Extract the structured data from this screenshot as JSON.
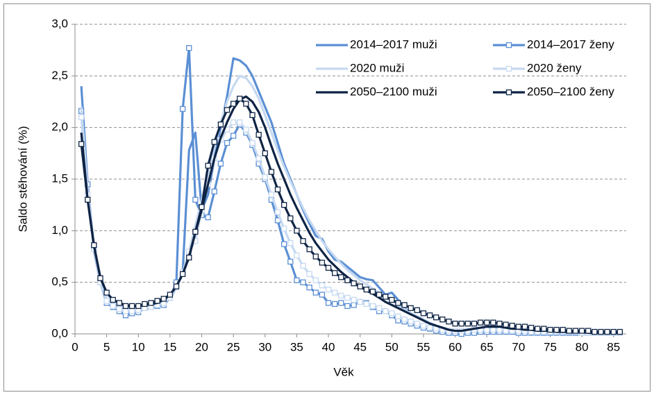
{
  "chart_data": {
    "type": "line",
    "x_label": "Věk",
    "y_label": "Saldo stěhování (%)",
    "x": [
      1,
      2,
      3,
      4,
      5,
      6,
      7,
      8,
      9,
      10,
      11,
      12,
      13,
      14,
      15,
      16,
      17,
      18,
      19,
      20,
      21,
      22,
      23,
      24,
      25,
      26,
      27,
      28,
      29,
      30,
      31,
      32,
      33,
      34,
      35,
      36,
      37,
      38,
      39,
      40,
      41,
      42,
      43,
      44,
      45,
      46,
      47,
      48,
      49,
      50,
      51,
      52,
      53,
      54,
      55,
      56,
      57,
      58,
      59,
      60,
      61,
      62,
      63,
      64,
      65,
      66,
      67,
      68,
      69,
      70,
      71,
      72,
      73,
      74,
      75,
      76,
      77,
      78,
      79,
      80,
      81,
      82,
      83,
      84,
      85,
      86
    ],
    "xlim": [
      0,
      87
    ],
    "xticks": [
      0,
      5,
      10,
      15,
      20,
      25,
      30,
      35,
      40,
      45,
      50,
      55,
      60,
      65,
      70,
      75,
      80,
      85
    ],
    "ylim": [
      0,
      3
    ],
    "yticks": [
      {
        "value": 0,
        "label": "0,0"
      },
      {
        "value": 0.5,
        "label": "0,5"
      },
      {
        "value": 1,
        "label": "1,0"
      },
      {
        "value": 1.5,
        "label": "1,5"
      },
      {
        "value": 2,
        "label": "2,0"
      },
      {
        "value": 2.5,
        "label": "2,5"
      },
      {
        "value": 3,
        "label": "3,0"
      }
    ],
    "grid": true,
    "legend": "upper right",
    "series": [
      {
        "name": "2014–2017 muži",
        "color": "#5b8fd4",
        "marker": "none",
        "values": [
          2.4,
          1.45,
          0.8,
          0.5,
          0.33,
          0.28,
          0.25,
          0.22,
          0.2,
          0.22,
          0.24,
          0.25,
          0.27,
          0.3,
          0.34,
          0.45,
          0.6,
          1.78,
          1.95,
          1.2,
          1.35,
          1.7,
          2.0,
          2.3,
          2.67,
          2.65,
          2.6,
          2.5,
          2.35,
          2.2,
          2.05,
          1.85,
          1.65,
          1.5,
          1.35,
          1.2,
          1.07,
          0.95,
          0.92,
          0.8,
          0.72,
          0.7,
          0.65,
          0.6,
          0.55,
          0.53,
          0.52,
          0.45,
          0.38,
          0.4,
          0.33,
          0.25,
          0.2,
          0.17,
          0.14,
          0.1,
          0.07,
          0.05,
          0.03,
          0.01,
          0.0,
          0.02,
          0.03,
          0.05,
          0.06,
          0.06,
          0.05,
          0.04,
          0.03,
          0.03,
          0.02,
          0.02,
          0.02,
          0.02,
          0.02,
          0.02,
          0.01,
          0.01,
          0.01,
          0.01,
          0.01,
          0.01,
          0.01,
          0.01,
          0.01,
          0.01
        ]
      },
      {
        "name": "2014–2017 ženy",
        "color": "#5b8fd4",
        "marker": "square",
        "values": [
          2.16,
          1.45,
          0.83,
          0.5,
          0.3,
          0.26,
          0.22,
          0.18,
          0.2,
          0.21,
          0.25,
          0.26,
          0.27,
          0.28,
          0.35,
          0.5,
          2.18,
          2.77,
          1.3,
          1.15,
          1.13,
          1.38,
          1.65,
          1.85,
          1.92,
          2.03,
          1.95,
          1.83,
          1.65,
          1.5,
          1.3,
          1.1,
          0.87,
          0.7,
          0.52,
          0.5,
          0.45,
          0.4,
          0.38,
          0.3,
          0.29,
          0.3,
          0.27,
          0.28,
          0.31,
          0.3,
          0.26,
          0.22,
          0.22,
          0.18,
          0.13,
          0.12,
          0.1,
          0.08,
          0.06,
          0.05,
          0.03,
          0.02,
          0.01,
          0.01,
          0.0,
          0.01,
          0.01,
          0.02,
          0.02,
          0.02,
          0.02,
          0.02,
          0.02,
          0.01,
          0.01,
          0.01,
          0.01,
          0.01,
          0.01,
          0.01,
          0.01,
          0.01,
          0.01,
          0.01,
          0.01,
          0.01,
          0.01,
          0.01,
          0.01,
          0.01
        ]
      },
      {
        "name": "2020 muži",
        "color": "#c6d9f1",
        "marker": "none",
        "values": [
          2.2,
          1.4,
          0.85,
          0.5,
          0.35,
          0.3,
          0.27,
          0.25,
          0.24,
          0.25,
          0.26,
          0.27,
          0.29,
          0.31,
          0.36,
          0.45,
          0.58,
          0.8,
          1.05,
          1.3,
          1.55,
          1.8,
          2.05,
          2.25,
          2.4,
          2.5,
          2.48,
          2.4,
          2.28,
          2.12,
          1.95,
          1.78,
          1.62,
          1.48,
          1.35,
          1.22,
          1.1,
          1.0,
          0.9,
          0.82,
          0.75,
          0.68,
          0.62,
          0.57,
          0.52,
          0.48,
          0.44,
          0.4,
          0.36,
          0.32,
          0.28,
          0.24,
          0.2,
          0.17,
          0.14,
          0.11,
          0.08,
          0.06,
          0.04,
          0.03,
          0.03,
          0.04,
          0.05,
          0.06,
          0.07,
          0.07,
          0.06,
          0.05,
          0.04,
          0.04,
          0.03,
          0.03,
          0.03,
          0.03,
          0.02,
          0.02,
          0.02,
          0.02,
          0.02,
          0.02,
          0.01,
          0.01,
          0.01,
          0.01,
          0.01,
          0.01
        ]
      },
      {
        "name": "2020 ženy",
        "color": "#c6d9f1",
        "marker": "square",
        "values": [
          2.1,
          1.35,
          0.82,
          0.5,
          0.32,
          0.27,
          0.24,
          0.22,
          0.22,
          0.23,
          0.25,
          0.26,
          0.28,
          0.3,
          0.35,
          0.45,
          0.6,
          0.8,
          0.9,
          1.2,
          1.45,
          1.7,
          1.88,
          1.98,
          2.05,
          2.05,
          1.98,
          1.85,
          1.7,
          1.52,
          1.35,
          1.18,
          1.02,
          0.88,
          0.76,
          0.66,
          0.58,
          0.52,
          0.47,
          0.43,
          0.4,
          0.37,
          0.35,
          0.33,
          0.31,
          0.29,
          0.27,
          0.25,
          0.22,
          0.2,
          0.17,
          0.14,
          0.12,
          0.1,
          0.08,
          0.06,
          0.05,
          0.04,
          0.03,
          0.03,
          0.03,
          0.03,
          0.04,
          0.04,
          0.04,
          0.04,
          0.04,
          0.03,
          0.03,
          0.03,
          0.03,
          0.02,
          0.02,
          0.02,
          0.02,
          0.02,
          0.02,
          0.02,
          0.02,
          0.01,
          0.01,
          0.01,
          0.01,
          0.01,
          0.01,
          0.01
        ]
      },
      {
        "name": "2050–2100 muži",
        "color": "#0f2445",
        "marker": "none",
        "values": [
          1.95,
          1.3,
          0.85,
          0.55,
          0.4,
          0.33,
          0.3,
          0.28,
          0.27,
          0.27,
          0.28,
          0.29,
          0.3,
          0.33,
          0.38,
          0.46,
          0.58,
          0.75,
          0.98,
          1.2,
          1.45,
          1.7,
          1.9,
          2.05,
          2.18,
          2.27,
          2.3,
          2.25,
          2.15,
          2.0,
          1.82,
          1.65,
          1.5,
          1.35,
          1.22,
          1.1,
          0.98,
          0.88,
          0.8,
          0.72,
          0.66,
          0.6,
          0.55,
          0.5,
          0.46,
          0.42,
          0.39,
          0.35,
          0.31,
          0.28,
          0.25,
          0.22,
          0.19,
          0.16,
          0.13,
          0.1,
          0.08,
          0.06,
          0.04,
          0.03,
          0.03,
          0.04,
          0.05,
          0.06,
          0.07,
          0.07,
          0.07,
          0.06,
          0.05,
          0.05,
          0.04,
          0.04,
          0.03,
          0.03,
          0.03,
          0.02,
          0.02,
          0.02,
          0.02,
          0.02,
          0.01,
          0.01,
          0.01,
          0.01,
          0.01,
          0.01
        ]
      },
      {
        "name": "2050–2100 ženy",
        "color": "#0f2445",
        "marker": "square",
        "values": [
          1.84,
          1.3,
          0.86,
          0.54,
          0.4,
          0.33,
          0.3,
          0.27,
          0.27,
          0.27,
          0.29,
          0.3,
          0.32,
          0.34,
          0.38,
          0.46,
          0.58,
          0.74,
          0.99,
          1.23,
          1.63,
          1.86,
          2.03,
          2.17,
          2.23,
          2.28,
          2.23,
          2.12,
          1.93,
          1.75,
          1.57,
          1.4,
          1.25,
          1.12,
          1.0,
          0.9,
          0.82,
          0.75,
          0.69,
          0.64,
          0.59,
          0.55,
          0.52,
          0.49,
          0.46,
          0.43,
          0.41,
          0.38,
          0.36,
          0.33,
          0.3,
          0.28,
          0.25,
          0.23,
          0.2,
          0.18,
          0.16,
          0.14,
          0.12,
          0.1,
          0.1,
          0.1,
          0.1,
          0.11,
          0.11,
          0.11,
          0.1,
          0.09,
          0.08,
          0.07,
          0.07,
          0.06,
          0.05,
          0.05,
          0.04,
          0.04,
          0.04,
          0.03,
          0.03,
          0.03,
          0.03,
          0.02,
          0.02,
          0.02,
          0.02,
          0.02
        ]
      }
    ]
  }
}
